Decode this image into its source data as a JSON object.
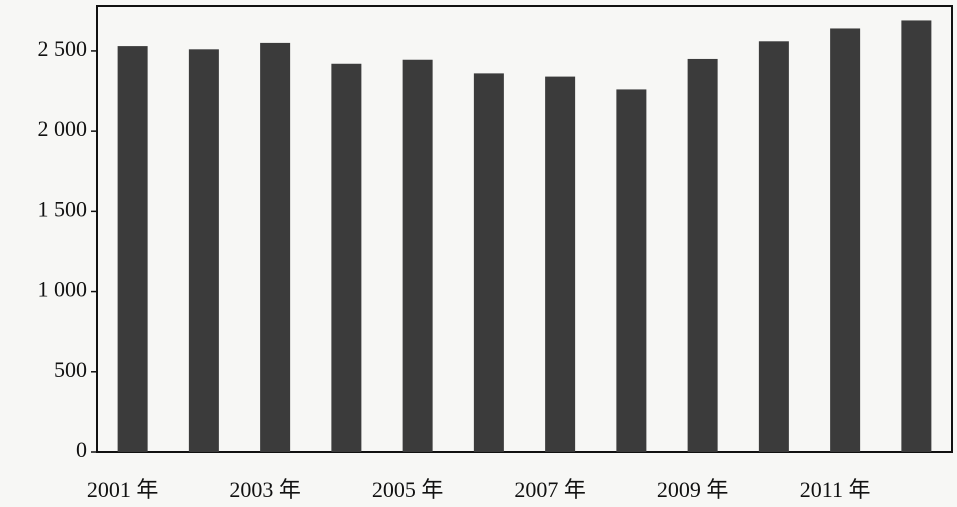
{
  "chart_data": {
    "type": "bar",
    "categories": [
      "2001 年",
      null,
      "2003 年",
      null,
      "2005 年",
      null,
      "2007 年",
      null,
      "2009 年",
      null,
      "2011 年",
      null
    ],
    "values": [
      2530,
      2510,
      2550,
      2420,
      2445,
      2360,
      2340,
      2260,
      2450,
      2560,
      2640,
      2690
    ],
    "color": "#3b3b3b",
    "ylim": [
      0,
      2780
    ],
    "yticks": [
      0,
      500,
      {
        "value": 1000,
        "label": "1 000"
      },
      {
        "value": 1500,
        "label": "1 500"
      },
      {
        "value": 2000,
        "label": "2 000"
      },
      {
        "value": 2500,
        "label": "2 500"
      }
    ],
    "grid": false
  }
}
